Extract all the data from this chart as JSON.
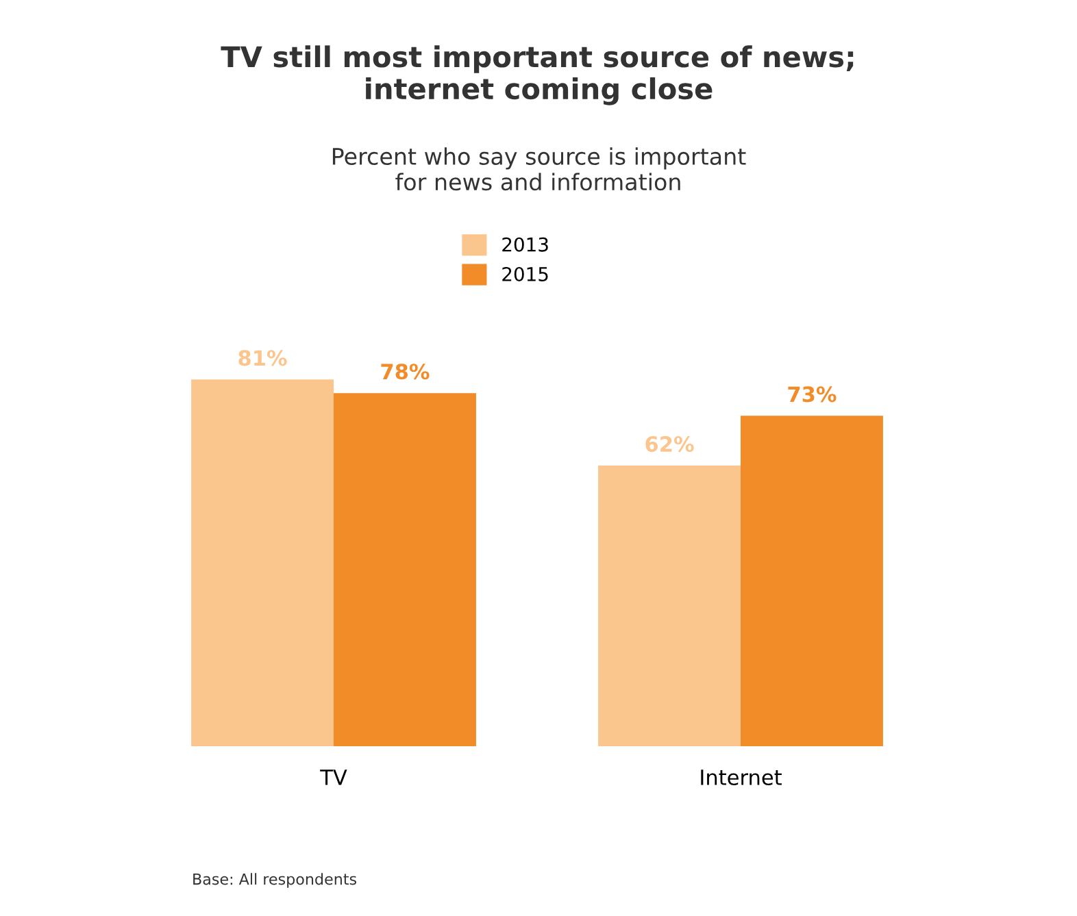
{
  "chart_data": {
    "type": "bar",
    "title": "TV still most important source of news;\ninternet coming close",
    "subtitle": "Percent who say source is important\nfor news and information",
    "categories": [
      "TV",
      "Internet"
    ],
    "series": [
      {
        "name": "2013",
        "color": "#fbc58e",
        "values": [
          81,
          62
        ],
        "value_labels": [
          "81%",
          "62%"
        ]
      },
      {
        "name": "2015",
        "color": "#f28c28",
        "values": [
          78,
          73
        ],
        "value_labels": [
          "78%",
          "73%"
        ]
      }
    ],
    "legend": "top",
    "grid": false,
    "annotations": [
      "Base: All respondents"
    ]
  }
}
